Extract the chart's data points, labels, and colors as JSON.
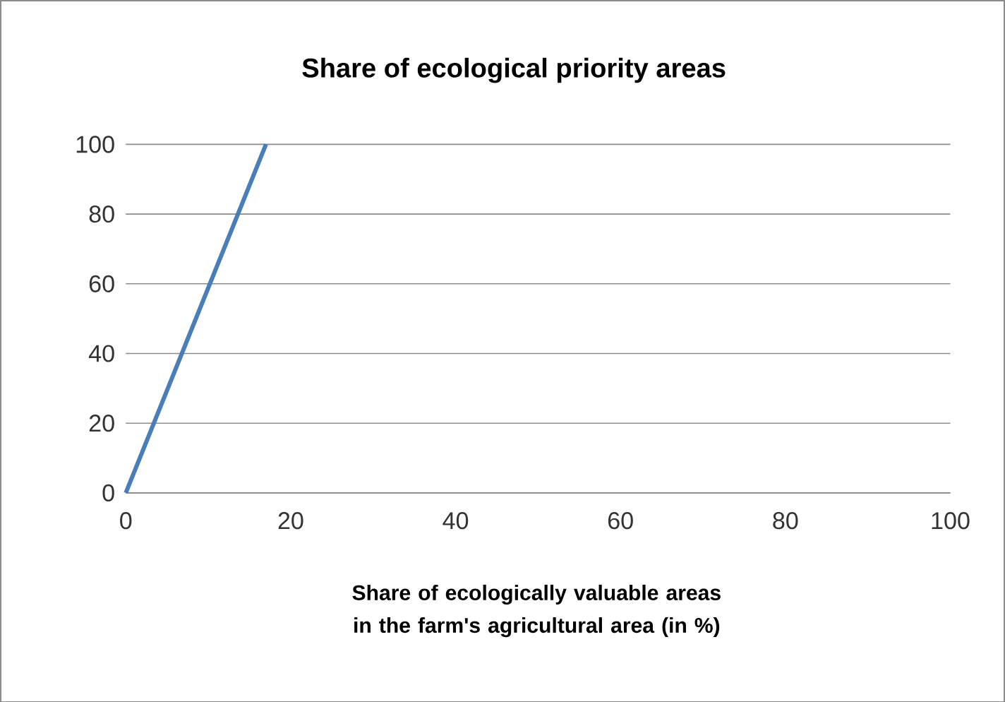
{
  "chart_data": {
    "type": "line",
    "title": "Share of ecological priority areas",
    "xlabel": "Share of ecologically valuable areas in the farm's agricultural area (in %)",
    "x": [
      0,
      17
    ],
    "values": [
      0,
      100
    ],
    "color": "#4a7ebb",
    "xlim": [
      0,
      100
    ],
    "ylim": [
      0,
      100
    ],
    "xticks": [
      0,
      20,
      40,
      60,
      80,
      100
    ],
    "yticks": [
      0,
      20,
      40,
      60,
      80,
      100
    ],
    "grid": "y"
  }
}
